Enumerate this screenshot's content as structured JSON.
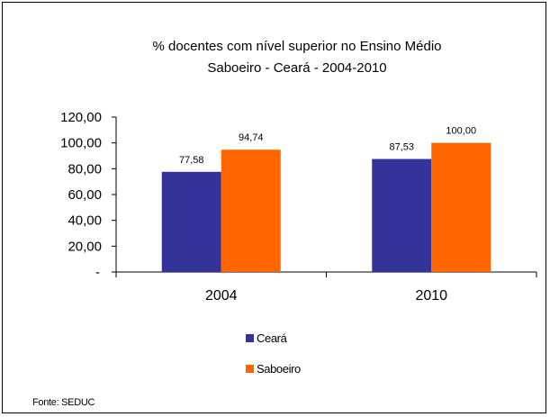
{
  "chart_data": {
    "type": "bar",
    "title": "% docentes com nível  superior no Ensino Médio",
    "subtitle": "Saboeiro  -  Ceará - 2004-2010",
    "categories": [
      "2004",
      "2010"
    ],
    "series": [
      {
        "name": "Ceará",
        "values": [
          77.58,
          87.53
        ],
        "labels": [
          "77,58",
          "87,53"
        ],
        "color": "#333399"
      },
      {
        "name": "Saboeiro",
        "values": [
          94.74,
          100.0
        ],
        "labels": [
          "94,74",
          "100,00"
        ],
        "color": "#FF6600"
      }
    ],
    "ylim": [
      0,
      120
    ],
    "yticks": [
      0,
      20,
      40,
      60,
      80,
      100,
      120
    ],
    "ytick_labels": [
      "-",
      "20,00",
      "40,00",
      "60,00",
      "80,00",
      "100,00",
      "120,00"
    ],
    "grid": false,
    "legend_position": "bottom"
  },
  "source": "Fonte: SEDUC"
}
